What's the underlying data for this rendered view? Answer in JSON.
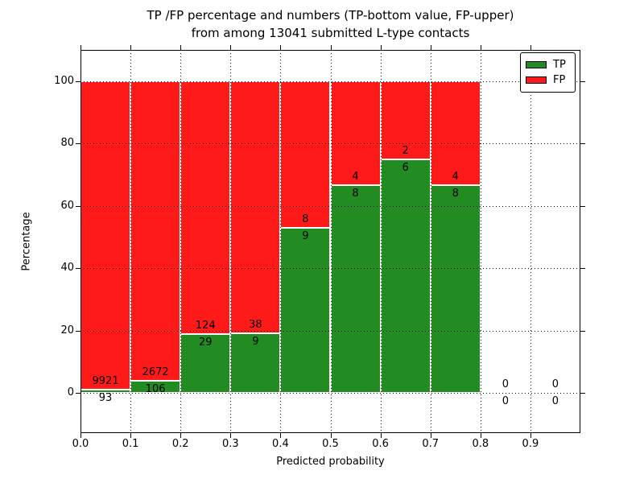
{
  "title": {
    "line1": "TP /FP percentage and numbers (TP-bottom value, FP-upper)",
    "line2": "from among 13041 submitted L-type contacts"
  },
  "chart_data": {
    "type": "bar",
    "stacked": true,
    "orientation": "vertical",
    "bins": [
      "0.0-0.1",
      "0.1-0.2",
      "0.2-0.3",
      "0.3-0.4",
      "0.4-0.5",
      "0.5-0.6",
      "0.6-0.7",
      "0.7-0.8",
      "0.8-0.9",
      "0.9-1.0"
    ],
    "series": [
      {
        "name": "TP",
        "color": "#228b22",
        "counts": [
          93,
          106,
          29,
          9,
          9,
          8,
          6,
          8,
          0,
          0
        ],
        "percent": [
          0.93,
          3.82,
          18.95,
          19.15,
          52.94,
          66.67,
          75.0,
          66.67,
          0,
          0
        ]
      },
      {
        "name": "FP",
        "color": "#ff1a1a",
        "counts": [
          9921,
          2672,
          124,
          38,
          8,
          4,
          2,
          4,
          0,
          0
        ],
        "percent": [
          99.07,
          96.18,
          81.05,
          80.85,
          47.06,
          33.33,
          25.0,
          33.33,
          0,
          0
        ]
      }
    ],
    "label_rule": "TP count below segment boundary, FP count above segment boundary",
    "xlabel": "Predicted probability",
    "ylabel": "Percentage",
    "x_ticks": [
      "0.0",
      "0.1",
      "0.2",
      "0.3",
      "0.4",
      "0.5",
      "0.6",
      "0.7",
      "0.8",
      "0.9"
    ],
    "y_ticks": [
      "0",
      "20",
      "40",
      "60",
      "80",
      "100"
    ],
    "xlim": [
      0.0,
      1.0
    ],
    "ylim": [
      -13,
      110
    ],
    "grid": "dotted",
    "legend": {
      "position": "upper-right",
      "entries": [
        {
          "label": "TP",
          "color": "#228b22"
        },
        {
          "label": "FP",
          "color": "#ff1a1a"
        }
      ]
    }
  }
}
